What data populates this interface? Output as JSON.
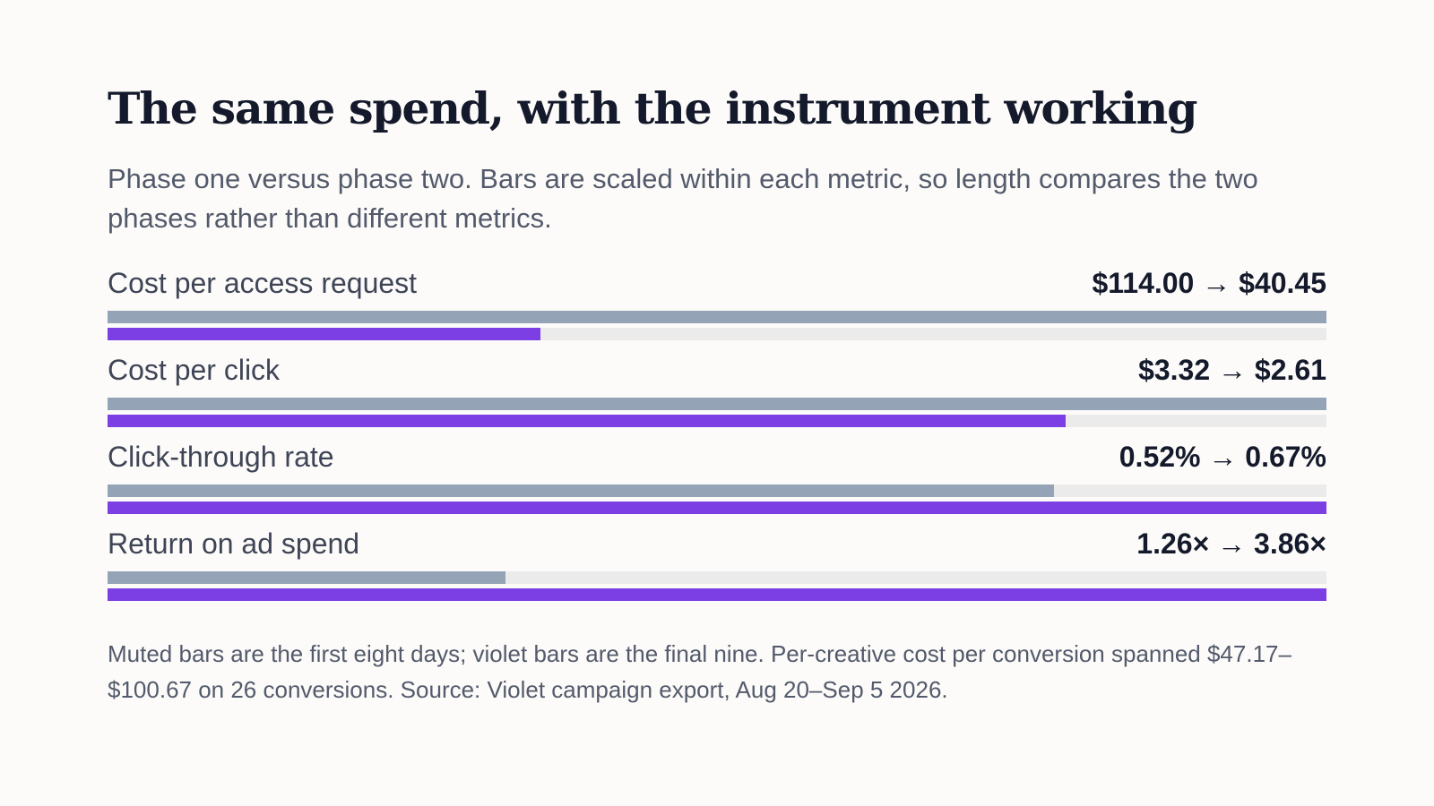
{
  "title": "The same spend, with the instrument working",
  "subtitle": "Phase one versus phase two. Bars are scaled within each metric, so length compares the two phases rather than different metrics.",
  "chart_data": {
    "type": "bar",
    "orientation": "horizontal",
    "scaling": "per-metric",
    "categories": [
      "Cost per access request",
      "Cost per click",
      "Click-through rate",
      "Return on ad spend"
    ],
    "value_labels": [
      "$114.00 → $40.45",
      "$3.32 → $2.61",
      "0.52% → 0.67%",
      "1.26× → 3.86×"
    ],
    "series": [
      {
        "values": [
          114.0,
          3.32,
          0.52,
          1.26
        ],
        "color": "#94a3b5"
      },
      {
        "values": [
          40.45,
          2.61,
          0.67,
          3.86
        ],
        "color": "#7b3fe4"
      }
    ],
    "track_color": "#ebebec",
    "grid": false
  },
  "footnote": "Muted bars are the first eight days; violet bars are the final nine. Per-creative cost per conversion spanned $47.17–$100.67 on 26 conversions. Source: Violet campaign export, Aug 20–Sep 5 2026."
}
